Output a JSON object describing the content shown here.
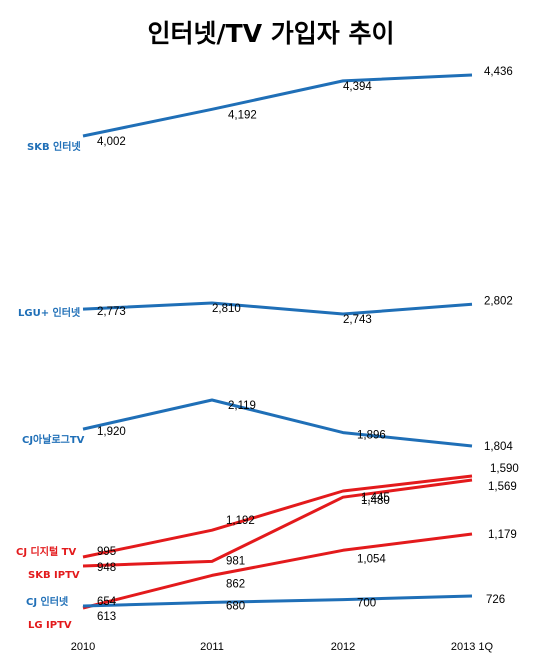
{
  "chart_data": {
    "type": "line",
    "title": "인터넷/TV 가입자 추이",
    "categories": [
      "2010",
      "2011",
      "2012",
      "2013 1Q"
    ],
    "series": [
      {
        "name": "SKB 인터넷",
        "color": "#1f6fb7",
        "values": [
          4002,
          4192,
          4394,
          4436
        ]
      },
      {
        "name": "LGU+ 인터넷",
        "color": "#1f6fb7",
        "values": [
          2773,
          2810,
          2743,
          2802
        ]
      },
      {
        "name": "CJ아날로그TV",
        "color": "#1f6fb7",
        "values": [
          1920,
          2119,
          1896,
          1804
        ]
      },
      {
        "name": "CJ 디지털 TV",
        "color": "#e31a1c",
        "values": [
          995,
          1192,
          1480,
          1590
        ]
      },
      {
        "name": "SKB IPTV",
        "color": "#e31a1c",
        "values": [
          948,
          981,
          1445,
          1569
        ]
      },
      {
        "name": "LG IPTV",
        "color": "#e31a1c",
        "values": [
          613,
          862,
          1054,
          1179
        ]
      },
      {
        "name": "CJ 인터넷",
        "color": "#1f6fb7",
        "values": [
          654,
          680,
          700,
          726
        ]
      }
    ],
    "value_labels": {
      "SKB 인터넷": [
        "4,002",
        "4,192",
        "4,394",
        "4,436"
      ],
      "LGU+ 인터넷": [
        "2,773",
        "2,810",
        "2,743",
        "2,802"
      ],
      "CJ아날로그TV": [
        "1,920",
        "2,119",
        "1,896",
        "1,804"
      ],
      "CJ 디지털 TV": [
        "995",
        "1,192",
        "1,480",
        "1,590"
      ],
      "SKB IPTV": [
        "948",
        "981",
        "1,445",
        "1,569"
      ],
      "LG IPTV": [
        "613",
        "862",
        "1,054",
        "1,179"
      ],
      "CJ 인터넷": [
        "654",
        "680",
        "700",
        "726"
      ]
    },
    "grid": false,
    "legend": "left, inline series labels"
  }
}
